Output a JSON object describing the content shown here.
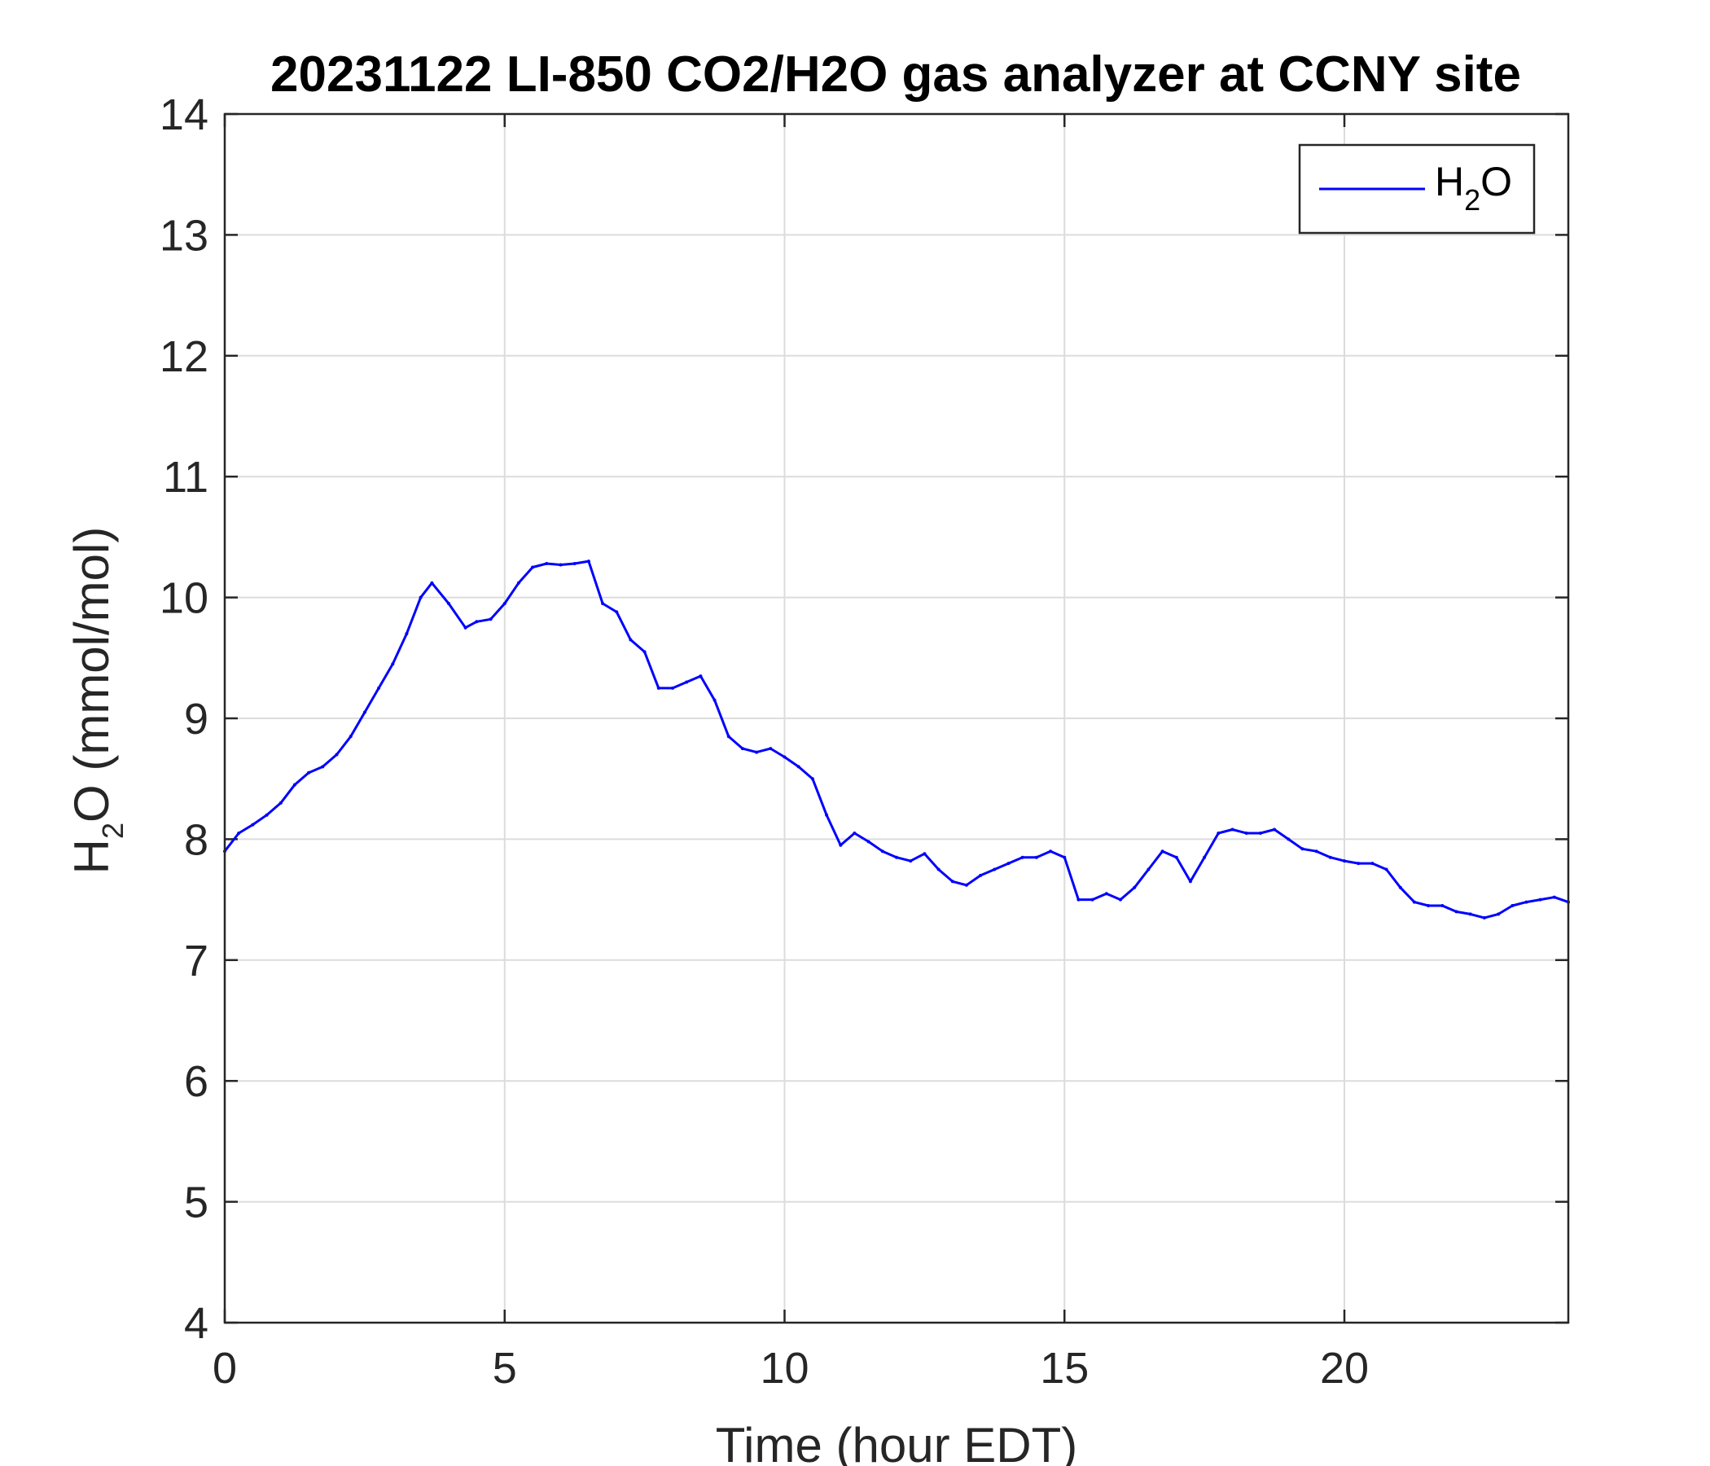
{
  "chart_data": {
    "type": "line",
    "title": "20231122 LI-850 CO2/H2O gas analyzer at CCNY site",
    "xlabel": "Time (hour EDT)",
    "ylabel": {
      "base": "H",
      "subscript": "2",
      "rest": "O (mmol/mol)"
    },
    "xlim": [
      0,
      24
    ],
    "ylim": [
      4,
      14
    ],
    "xticks": [
      0,
      5,
      10,
      15,
      20
    ],
    "yticks": [
      4,
      5,
      6,
      7,
      8,
      9,
      10,
      11,
      12,
      13,
      14
    ],
    "grid": true,
    "legend": {
      "placement": "top-right",
      "entries": [
        {
          "base": "H",
          "subscript": "2",
          "rest": "O"
        }
      ]
    },
    "series": [
      {
        "name": "H2O",
        "color": "#0000ff",
        "x": [
          0,
          0.25,
          0.5,
          0.75,
          1.0,
          1.25,
          1.5,
          1.75,
          2.0,
          2.25,
          2.5,
          2.75,
          3.0,
          3.25,
          3.5,
          3.7,
          4.0,
          4.3,
          4.5,
          4.75,
          5.0,
          5.25,
          5.5,
          5.75,
          6.0,
          6.25,
          6.5,
          6.75,
          7.0,
          7.25,
          7.5,
          7.75,
          8.0,
          8.25,
          8.5,
          8.75,
          9.0,
          9.25,
          9.5,
          9.75,
          10.0,
          10.25,
          10.5,
          10.75,
          11.0,
          11.25,
          11.5,
          11.75,
          12.0,
          12.25,
          12.5,
          12.75,
          13.0,
          13.25,
          13.5,
          13.75,
          14.0,
          14.25,
          14.5,
          14.75,
          15.0,
          15.25,
          15.5,
          15.75,
          16.0,
          16.25,
          16.5,
          16.75,
          17.0,
          17.25,
          17.5,
          17.75,
          18.0,
          18.25,
          18.5,
          18.75,
          19.0,
          19.25,
          19.5,
          19.75,
          20.0,
          20.25,
          20.5,
          20.75,
          21.0,
          21.25,
          21.5,
          21.75,
          22.0,
          22.25,
          22.5,
          22.75,
          23.0,
          23.25,
          23.5,
          23.75,
          24.0
        ],
        "values": [
          7.9,
          8.05,
          8.12,
          8.2,
          8.3,
          8.45,
          8.55,
          8.6,
          8.7,
          8.85,
          9.05,
          9.25,
          9.45,
          9.7,
          10.0,
          10.12,
          9.95,
          9.75,
          9.8,
          9.82,
          9.95,
          10.12,
          10.25,
          10.28,
          10.27,
          10.28,
          10.3,
          9.95,
          9.88,
          9.65,
          9.55,
          9.25,
          9.25,
          9.3,
          9.35,
          9.15,
          8.85,
          8.75,
          8.72,
          8.75,
          8.68,
          8.6,
          8.5,
          8.2,
          7.95,
          8.05,
          7.98,
          7.9,
          7.85,
          7.82,
          7.88,
          7.75,
          7.65,
          7.62,
          7.7,
          7.75,
          7.8,
          7.85,
          7.85,
          7.9,
          7.85,
          7.5,
          7.5,
          7.55,
          7.5,
          7.6,
          7.75,
          7.9,
          7.85,
          7.65,
          7.85,
          8.05,
          8.08,
          8.05,
          8.05,
          8.08,
          8.0,
          7.92,
          7.9,
          7.85,
          7.82,
          7.8,
          7.8,
          7.75,
          7.6,
          7.48,
          7.45,
          7.45,
          7.4,
          7.38,
          7.35,
          7.38,
          7.45,
          7.48,
          7.5,
          7.52,
          7.48
        ]
      }
    ]
  }
}
